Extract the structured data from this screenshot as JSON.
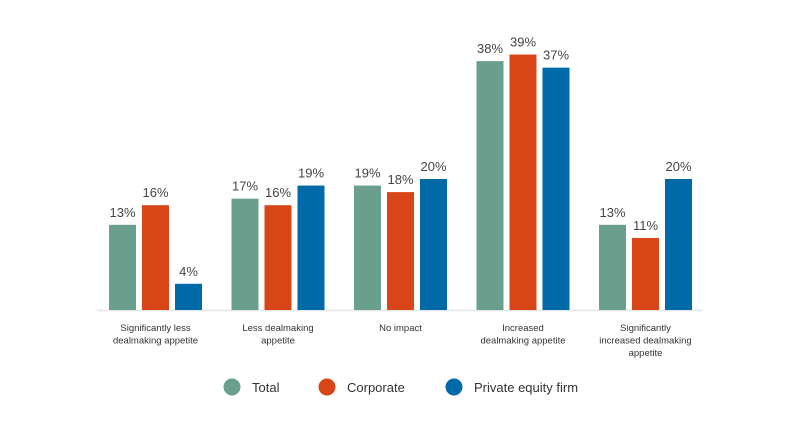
{
  "chart_data": {
    "type": "bar",
    "title": "",
    "xlabel": "",
    "ylabel": "",
    "ylim": [
      0,
      40
    ],
    "grid": false,
    "legend_position": "bottom",
    "categories": [
      [
        "Significantly less",
        "dealmaking appetite"
      ],
      [
        "Less dealmaking",
        "appetite"
      ],
      [
        "No impact"
      ],
      [
        "Increased",
        "dealmaking appetite"
      ],
      [
        "Significantly",
        "increased dealmaking",
        "appetite"
      ]
    ],
    "series": [
      {
        "name": "Total",
        "color": "#6a9f8e",
        "values": [
          13,
          17,
          19,
          38,
          13
        ]
      },
      {
        "name": "Corporate",
        "color": "#d84516",
        "values": [
          16,
          16,
          18,
          39,
          11
        ]
      },
      {
        "name": "Private equity firm",
        "color": "#006aa8",
        "values": [
          4,
          19,
          20,
          37,
          20
        ]
      }
    ],
    "value_suffix": "%"
  }
}
